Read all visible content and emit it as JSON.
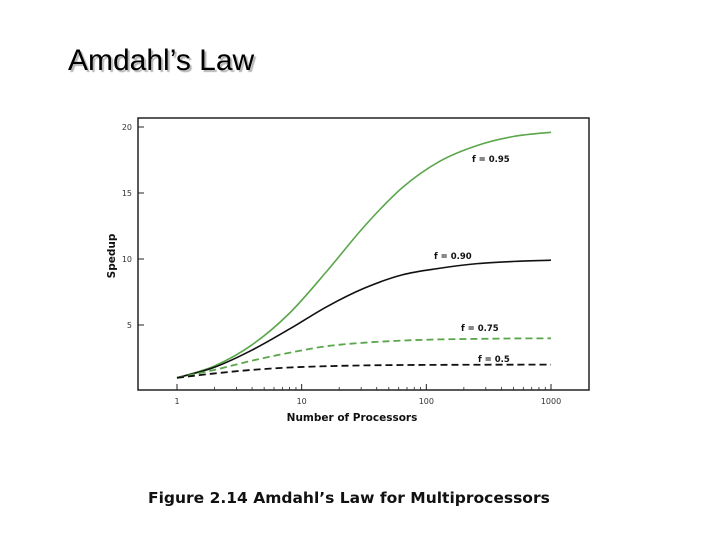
{
  "slide": {
    "title": "Amdahl’s Law",
    "caption": "Figure 2.14  Amdahl’s Law for Multiprocessors"
  },
  "colors": {
    "green": "#5aa64b",
    "black": "#111111",
    "frame": "#222222"
  },
  "chart_data": {
    "type": "line",
    "title": "",
    "xlabel": "Number of Processors",
    "ylabel": "Spedup",
    "x_scale": "log",
    "xlim": [
      1,
      1000
    ],
    "ylim": [
      0,
      20
    ],
    "x_ticks": [
      1,
      10,
      100,
      1000
    ],
    "x_tick_labels": [
      "1",
      "10",
      "100",
      "1000"
    ],
    "y_ticks": [
      5,
      10,
      15,
      20
    ],
    "y_tick_labels": [
      "5",
      "10",
      "15",
      "20"
    ],
    "grid": false,
    "series": [
      {
        "name": "f = 0.95",
        "color": "green",
        "dash": "solid",
        "x": [
          1,
          2,
          4,
          8,
          16,
          32,
          64,
          128,
          256,
          512,
          1000
        ],
        "y": [
          1,
          1.9,
          3.5,
          5.9,
          9.1,
          12.5,
          15.4,
          17.4,
          18.6,
          19.3,
          19.6
        ]
      },
      {
        "name": "f = 0.90",
        "color": "black",
        "dash": "solid",
        "x": [
          1,
          2,
          4,
          8,
          16,
          32,
          64,
          128,
          256,
          512,
          1000
        ],
        "y": [
          1,
          1.8,
          3.1,
          4.7,
          6.4,
          7.8,
          8.8,
          9.3,
          9.65,
          9.82,
          9.91
        ]
      },
      {
        "name": "f = 0.75",
        "color": "green",
        "dash": "dashed",
        "x": [
          1,
          2,
          4,
          8,
          16,
          32,
          64,
          128,
          256,
          512,
          1000
        ],
        "y": [
          1,
          1.6,
          2.3,
          2.9,
          3.4,
          3.66,
          3.82,
          3.91,
          3.95,
          3.98,
          3.99
        ]
      },
      {
        "name": "f = 0.5",
        "color": "black",
        "dash": "dashed",
        "x": [
          1,
          2,
          4,
          8,
          16,
          32,
          64,
          128,
          256,
          512,
          1000
        ],
        "y": [
          1,
          1.33,
          1.6,
          1.78,
          1.88,
          1.94,
          1.97,
          1.98,
          1.99,
          1.995,
          2.0
        ]
      }
    ]
  }
}
